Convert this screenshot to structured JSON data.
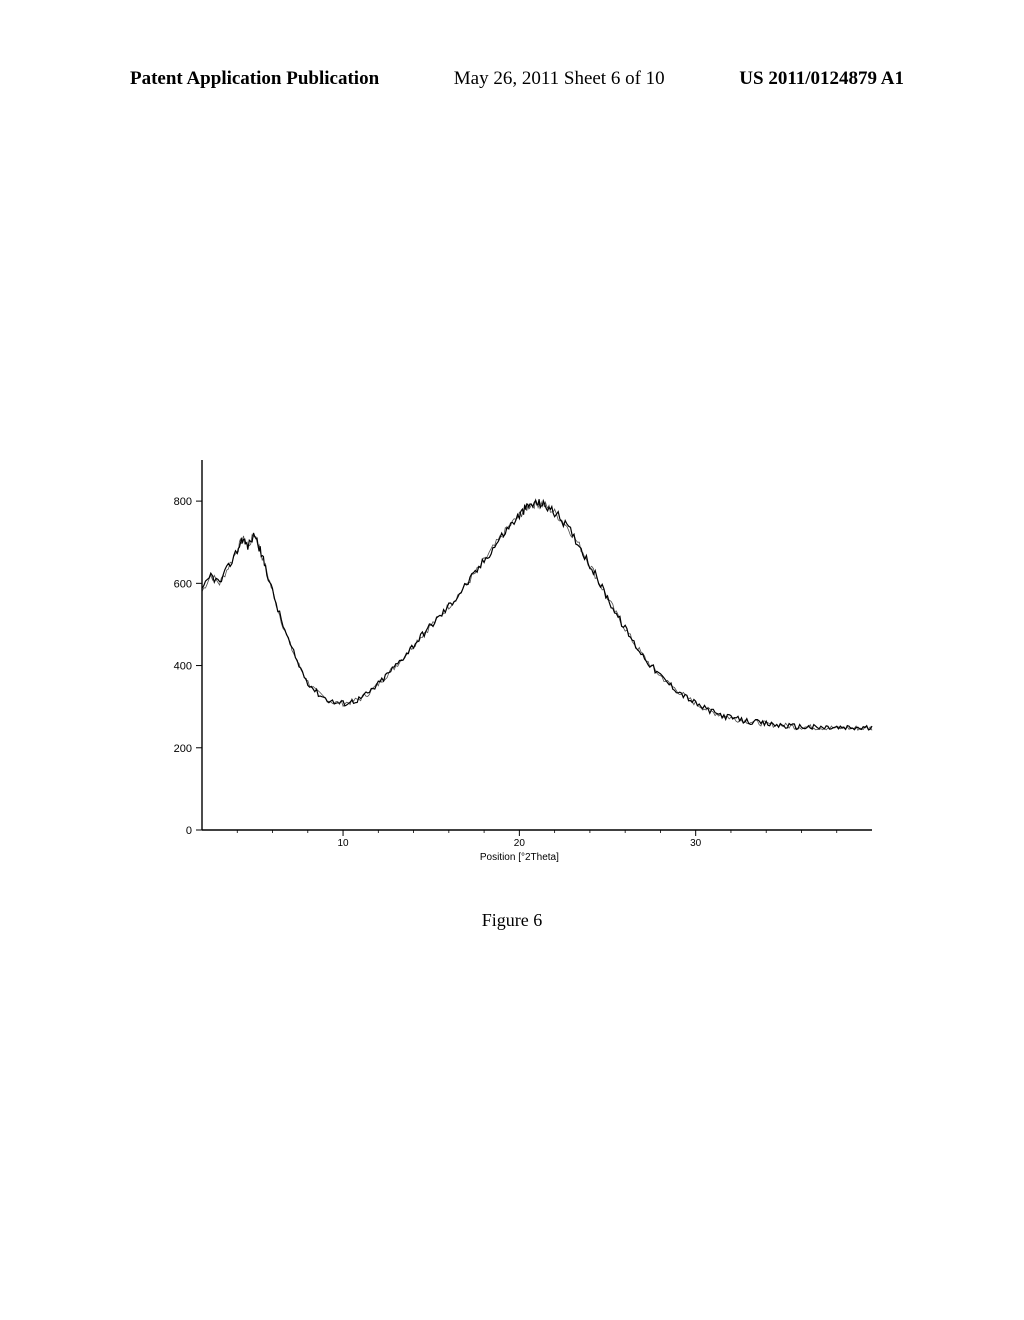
{
  "header": {
    "left": "Patent Application Publication",
    "mid": "May 26, 2011  Sheet 6 of 10",
    "right": "US 2011/0124879 A1"
  },
  "figure_label": "Figure 6",
  "chart": {
    "type": "line",
    "xlabel": "Position [°2Theta]",
    "xlim": [
      2,
      40
    ],
    "xtick_positions": [
      10,
      20,
      30
    ],
    "xtick_labels": [
      "10",
      "20",
      "30"
    ],
    "ylim": [
      0,
      900
    ],
    "ytick_positions": [
      0,
      200,
      400,
      600,
      800
    ],
    "ytick_labels": [
      "0",
      "200",
      "400",
      "600",
      "800"
    ],
    "line_color": "#000000",
    "line_width": 1.2,
    "background_color": "#ffffff",
    "noise_amplitude": 18,
    "points": [
      [
        2.0,
        580
      ],
      [
        2.5,
        620
      ],
      [
        3.0,
        600
      ],
      [
        3.5,
        640
      ],
      [
        4.0,
        680
      ],
      [
        4.3,
        710
      ],
      [
        4.6,
        690
      ],
      [
        5.0,
        720
      ],
      [
        5.3,
        680
      ],
      [
        5.6,
        640
      ],
      [
        6.0,
        580
      ],
      [
        6.5,
        510
      ],
      [
        7.0,
        450
      ],
      [
        7.5,
        400
      ],
      [
        8.0,
        360
      ],
      [
        8.5,
        335
      ],
      [
        9.0,
        320
      ],
      [
        9.5,
        310
      ],
      [
        10.0,
        308
      ],
      [
        10.5,
        312
      ],
      [
        11.0,
        320
      ],
      [
        11.5,
        335
      ],
      [
        12.0,
        355
      ],
      [
        12.5,
        378
      ],
      [
        13.0,
        400
      ],
      [
        13.5,
        425
      ],
      [
        14.0,
        450
      ],
      [
        14.5,
        475
      ],
      [
        15.0,
        498
      ],
      [
        15.5,
        520
      ],
      [
        16.0,
        545
      ],
      [
        16.5,
        570
      ],
      [
        17.0,
        598
      ],
      [
        17.5,
        625
      ],
      [
        18.0,
        655
      ],
      [
        18.5,
        685
      ],
      [
        19.0,
        715
      ],
      [
        19.5,
        742
      ],
      [
        20.0,
        765
      ],
      [
        20.3,
        780
      ],
      [
        20.6,
        790
      ],
      [
        21.0,
        795
      ],
      [
        21.3,
        793
      ],
      [
        21.6,
        785
      ],
      [
        22.0,
        772
      ],
      [
        22.5,
        750
      ],
      [
        23.0,
        720
      ],
      [
        23.5,
        685
      ],
      [
        24.0,
        645
      ],
      [
        24.5,
        605
      ],
      [
        25.0,
        565
      ],
      [
        25.5,
        525
      ],
      [
        26.0,
        490
      ],
      [
        26.5,
        455
      ],
      [
        27.0,
        425
      ],
      [
        27.5,
        398
      ],
      [
        28.0,
        375
      ],
      [
        28.5,
        355
      ],
      [
        29.0,
        338
      ],
      [
        29.5,
        322
      ],
      [
        30.0,
        308
      ],
      [
        30.5,
        296
      ],
      [
        31.0,
        286
      ],
      [
        31.5,
        279
      ],
      [
        32.0,
        273
      ],
      [
        32.5,
        268
      ],
      [
        33.0,
        264
      ],
      [
        33.5,
        261
      ],
      [
        34.0,
        258
      ],
      [
        34.5,
        256
      ],
      [
        35.0,
        254
      ],
      [
        35.5,
        252
      ],
      [
        36.0,
        251
      ],
      [
        36.5,
        250
      ],
      [
        37.0,
        249
      ],
      [
        37.5,
        249
      ],
      [
        38.0,
        248
      ],
      [
        38.5,
        248
      ],
      [
        39.0,
        248
      ],
      [
        39.5,
        248
      ],
      [
        40.0,
        248
      ]
    ]
  }
}
